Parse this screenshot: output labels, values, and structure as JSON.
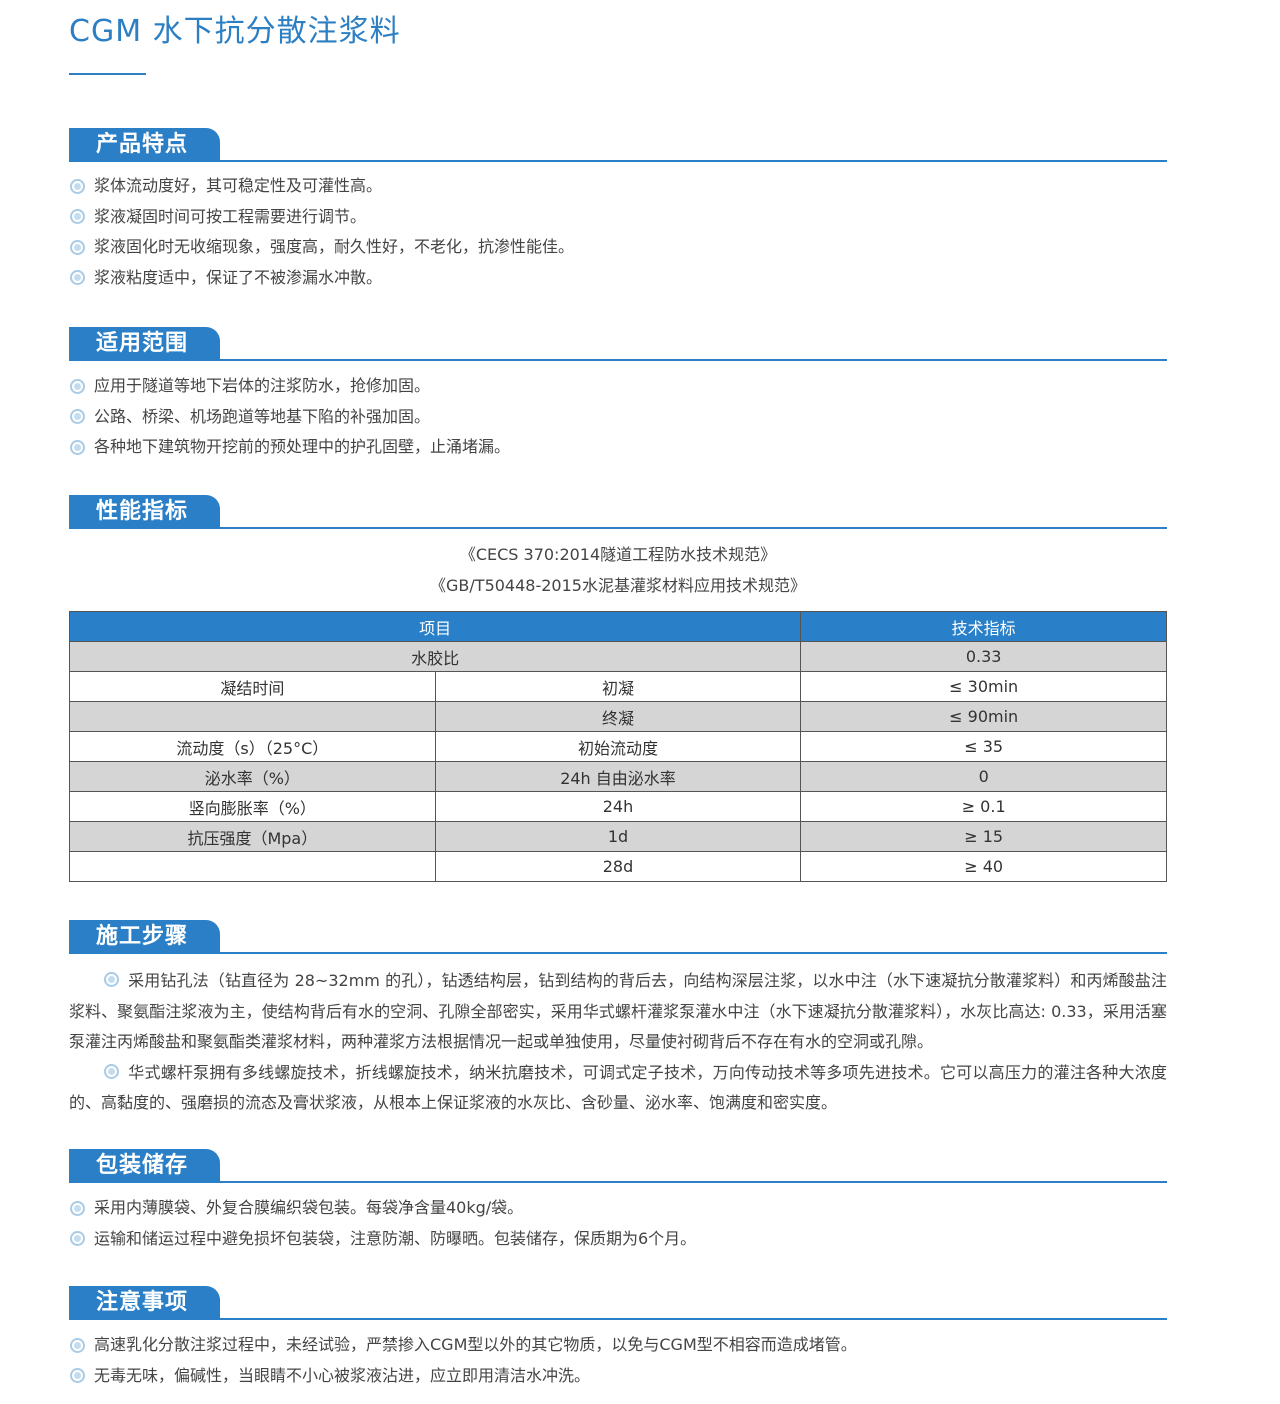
{
  "title": "CGM 水下抗分散注浆料",
  "accent_color": "#2a7fc6",
  "bullet_icon": "double-circle-icon",
  "sections": {
    "features": {
      "heading": "产品特点",
      "items": [
        "浆体流动度好，其可稳定性及可灌性高。",
        "浆液凝固时间可按工程需要进行调节。",
        "浆液固化时无收缩现象，强度高，耐久性好，不老化，抗渗性能佳。",
        "浆液粘度适中，保证了不被渗漏水冲散。"
      ]
    },
    "scope": {
      "heading": "适用范围",
      "items": [
        "应用于隧道等地下岩体的注浆防水，抢修加固。",
        "公路、桥梁、机场跑道等地基下陷的补强加固。",
        "各种地下建筑物开挖前的预处理中的护孔固壁，止涌堵漏。"
      ]
    },
    "performance": {
      "heading": "性能指标",
      "standards": [
        "《CECS 370:2014隧道工程防水技术规范》",
        "《GB/T50448-2015水泥基灌浆材料应用技术规范》"
      ],
      "table": {
        "headers": [
          "项目",
          "技术指标"
        ],
        "rows": [
          {
            "item": "水胶比",
            "sub": "",
            "value": "0.33",
            "merged": true
          },
          {
            "item": "凝结时间",
            "sub": "初凝",
            "value": "≤ 30min"
          },
          {
            "item": "",
            "sub": "终凝",
            "value": "≤ 90min"
          },
          {
            "item": "流动度（s）（25°C）",
            "sub": "初始流动度",
            "value": "≤ 35"
          },
          {
            "item": "泌水率（%）",
            "sub": "24h 自由泌水率",
            "value": "0"
          },
          {
            "item": "竖向膨胀率（%）",
            "sub": "24h",
            "value": "≥ 0.1"
          },
          {
            "item": "抗压强度（Mpa）",
            "sub": "1d",
            "value": "≥ 15"
          },
          {
            "item": "",
            "sub": "28d",
            "value": "≥ 40"
          }
        ]
      }
    },
    "construction": {
      "heading": "施工步骤",
      "paragraphs": [
        "采用钻孔法（钻直径为 28~32mm 的孔），钻透结构层，钻到结构的背后去，向结构深层注浆，以水中注（水下速凝抗分散灌浆料）和丙烯酸盐注浆料、聚氨酯注浆液为主，使结构背后有水的空洞、孔隙全部密实，采用华式螺杆灌浆泵灌水中注（水下速凝抗分散灌浆料），水灰比高达: 0.33，采用活塞泵灌注丙烯酸盐和聚氨酯类灌浆材料，两种灌浆方法根据情况一起或单独使用，尽量使衬砌背后不存在有水的空洞或孔隙。",
        "华式螺杆泵拥有多线螺旋技术，折线螺旋技术，纳米抗磨技术，可调式定子技术，万向传动技术等多项先进技术。它可以高压力的灌注各种大浓度的、高黏度的、强磨损的流态及膏状浆液，从根本上保证浆液的水灰比、含砂量、泌水率、饱满度和密实度。"
      ]
    },
    "packaging": {
      "heading": "包装储存",
      "items": [
        "采用内薄膜袋、外复合膜编织袋包装。每袋净含量40kg/袋。",
        "运输和储运过程中避免损坏包装袋，注意防潮、防曝晒。包装储存，保质期为6个月。"
      ]
    },
    "notes": {
      "heading": "注意事项",
      "items": [
        "高速乳化分散注浆过程中，未经试验，严禁掺入CGM型以外的其它物质，以免与CGM型不相容而造成堵管。",
        "无毒无味，偏碱性，当眼睛不小心被浆液沾进，应立即用清洁水冲洗。"
      ]
    }
  }
}
